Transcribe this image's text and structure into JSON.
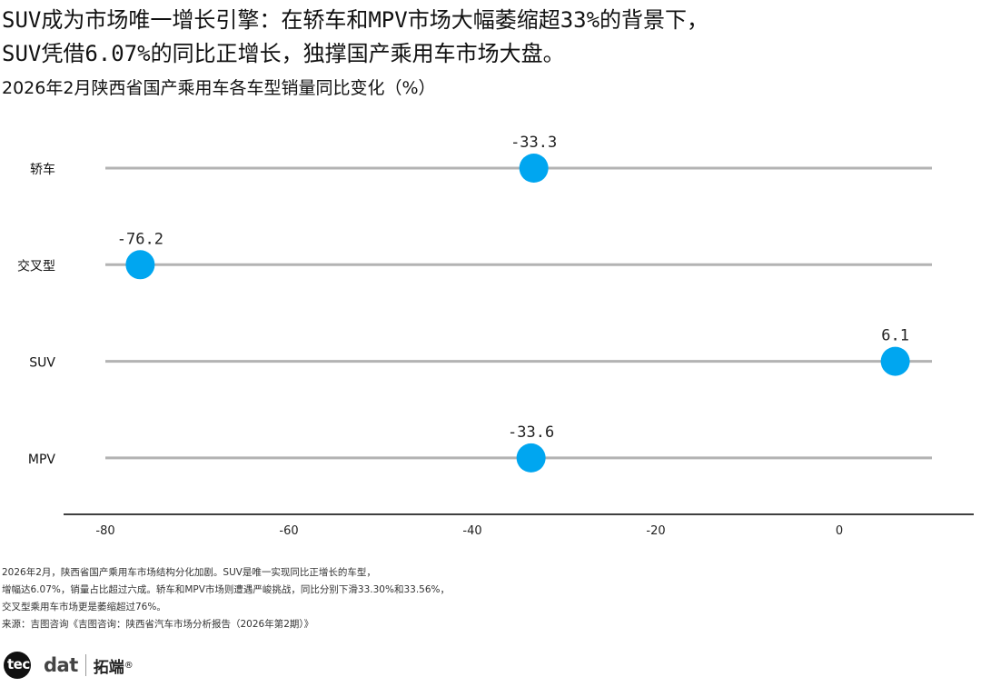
{
  "headline": {
    "line1": "SUV成为市场唯一增长引擎：在轿车和MPV市场大幅萎缩超33%的背景下，",
    "line2": "SUV凭借6.07%的同比正增长，独撑国产乘用车市场大盘。"
  },
  "colors": {
    "dot": "#00a6f0",
    "track": "#b3b3b3",
    "axis": "#000000"
  },
  "chart_data": {
    "type": "dot",
    "title": "2026年2月陕西省国产乘用车各车型销量同比变化（%）",
    "categories": [
      "轿车",
      "交叉型",
      "SUV",
      "MPV"
    ],
    "values": [
      -33.3,
      -76.2,
      6.1,
      -33.6
    ],
    "value_labels": [
      "-33.3",
      "-76.2",
      "6.1",
      "-33.6"
    ],
    "x_ticks": [
      -80,
      -60,
      -40,
      -20,
      0
    ],
    "xlim": [
      -84.5,
      12
    ],
    "grid": false,
    "legend": "none"
  },
  "notes": [
    "2026年2月，陕西省国产乘用车市场结构分化加剧。SUV是唯一实现同比正增长的车型，",
    "增幅达6.07%，销量占比超过六成。轿车和MPV市场则遭遇严峻挑战，同比分别下滑33.30%和33.56%，",
    "交叉型乘用车市场更是萎缩超过76%。",
    "来源：吉图咨询《吉图咨询：陕西省汽车市场分析报告（2026年第2期）》"
  ],
  "logo": {
    "badge": "tec",
    "rest": "dat",
    "cn": "拓端",
    "reg": "®"
  }
}
